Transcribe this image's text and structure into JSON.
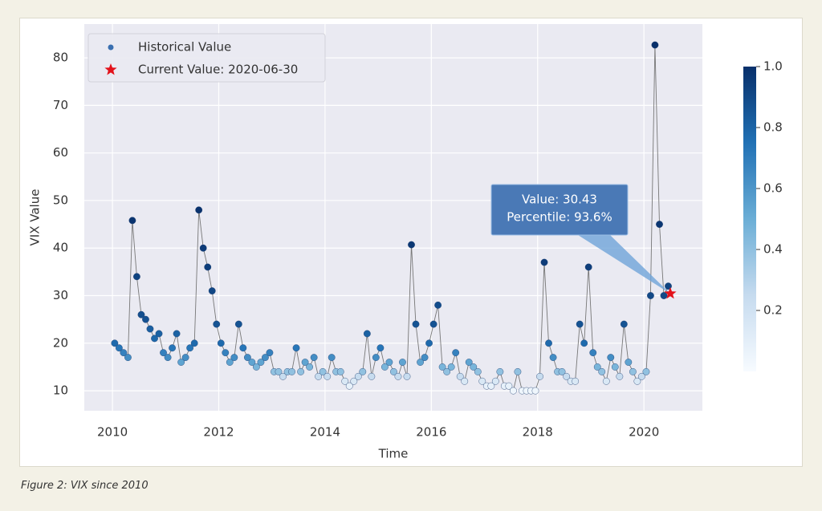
{
  "chart_data": {
    "type": "scatter",
    "xlabel": "Time",
    "ylabel": "VIX Value",
    "xlim": [
      2009.47,
      2021.1
    ],
    "ylim": [
      5.8,
      87.1
    ],
    "xticks": [
      2010,
      2012,
      2014,
      2016,
      2018,
      2020
    ],
    "yticks": [
      10,
      20,
      30,
      40,
      50,
      60,
      70,
      80
    ],
    "grid": true,
    "legend": "upper left",
    "colormap": "Blues",
    "clim": [
      0,
      1
    ],
    "cticks": [
      0.2,
      0.4,
      0.6,
      0.8,
      {
        "value": 1,
        "label": "1.0"
      }
    ],
    "series": [
      {
        "name": "Historical Value",
        "color": "#3a6fb0",
        "x": [
          2010.042,
          2010.125,
          2010.208,
          2010.292,
          2010.375,
          2010.458,
          2010.542,
          2010.625,
          2010.708,
          2010.792,
          2010.875,
          2010.958,
          2011.042,
          2011.125,
          2011.208,
          2011.292,
          2011.375,
          2011.458,
          2011.542,
          2011.625,
          2011.708,
          2011.792,
          2011.875,
          2011.958,
          2012.042,
          2012.125,
          2012.208,
          2012.292,
          2012.375,
          2012.458,
          2012.542,
          2012.625,
          2012.708,
          2012.792,
          2012.875,
          2012.958,
          2013.042,
          2013.125,
          2013.208,
          2013.292,
          2013.375,
          2013.458,
          2013.542,
          2013.625,
          2013.708,
          2013.792,
          2013.875,
          2013.958,
          2014.042,
          2014.125,
          2014.208,
          2014.292,
          2014.375,
          2014.458,
          2014.542,
          2014.625,
          2014.708,
          2014.792,
          2014.875,
          2014.958,
          2015.042,
          2015.125,
          2015.208,
          2015.292,
          2015.375,
          2015.458,
          2015.542,
          2015.625,
          2015.708,
          2015.792,
          2015.875,
          2015.958,
          2016.042,
          2016.125,
          2016.208,
          2016.292,
          2016.375,
          2016.458,
          2016.542,
          2016.625,
          2016.708,
          2016.792,
          2016.875,
          2016.958,
          2017.042,
          2017.125,
          2017.208,
          2017.292,
          2017.375,
          2017.458,
          2017.542,
          2017.625,
          2017.708,
          2017.792,
          2017.875,
          2017.958,
          2018.042,
          2018.125,
          2018.208,
          2018.292,
          2018.375,
          2018.458,
          2018.542,
          2018.625,
          2018.708,
          2018.792,
          2018.875,
          2018.958,
          2019.042,
          2019.125,
          2019.208,
          2019.292,
          2019.375,
          2019.458,
          2019.542,
          2019.625,
          2019.708,
          2019.792,
          2019.875,
          2019.958,
          2020.042,
          2020.125,
          2020.208,
          2020.292,
          2020.375,
          2020.458
        ],
        "values": [
          20,
          19,
          18,
          17,
          45.8,
          34,
          26,
          25,
          23,
          21,
          22,
          18,
          17,
          19,
          22,
          16,
          17,
          19,
          20,
          48,
          40,
          36,
          31,
          24,
          20,
          18,
          16,
          17,
          24,
          19,
          17,
          16,
          15,
          16,
          17,
          18,
          14,
          14,
          13,
          14,
          14,
          19,
          14,
          16,
          15,
          17,
          13,
          14,
          13,
          17,
          14,
          14,
          12,
          11,
          12,
          13,
          14,
          22,
          13,
          17,
          19,
          15,
          16,
          14,
          13,
          16,
          13,
          40.7,
          24,
          16,
          17,
          20,
          24,
          28,
          15,
          14,
          15,
          18,
          13,
          12,
          16,
          15,
          14,
          12,
          11,
          11,
          12,
          14,
          11,
          11,
          10,
          14,
          10,
          10,
          10,
          10,
          13,
          37,
          20,
          17,
          14,
          14,
          13,
          12,
          12,
          24,
          20,
          36,
          18,
          15,
          14,
          12,
          17,
          15,
          13,
          24,
          16,
          14,
          12,
          13,
          14,
          30,
          82.7,
          45,
          30,
          32
        ]
      },
      {
        "name": "Current Value: 2020-06-30",
        "color": "#e3121b",
        "x": [
          2020.496
        ],
        "values": [
          30.43
        ]
      }
    ],
    "annotations": [
      "Value: 30.43",
      "Percentile: 93.6%"
    ]
  },
  "caption": "Figure 2: VIX since 2010"
}
